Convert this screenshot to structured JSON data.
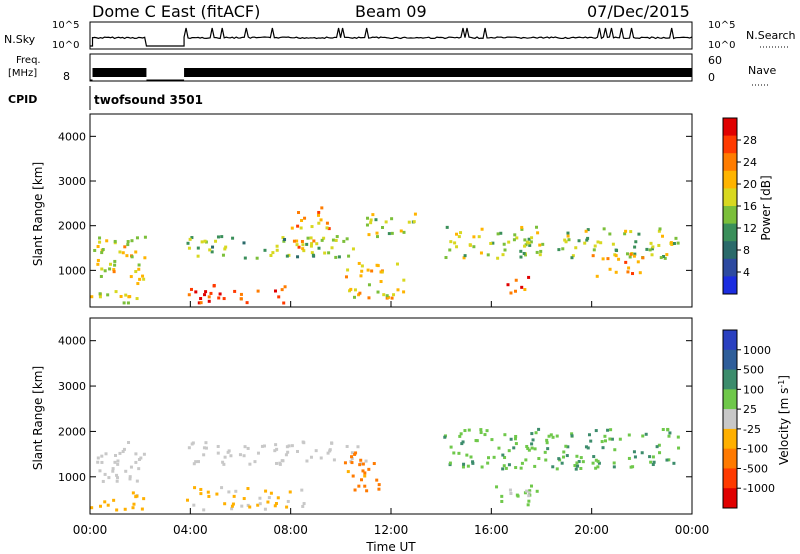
{
  "header": {
    "title": "Dome C East (fitACF)",
    "beam": "Beam 09",
    "date": "07/Dec/2015"
  },
  "top_panels": {
    "nsky_label": "N.Sky",
    "nsky_ticks": [
      "10^5",
      "10^0"
    ],
    "nsearch_label": "N.Search",
    "nsearch_ticks": [
      "10^5",
      "10^0"
    ],
    "freq_label": "Freq.",
    "freq_unit": "[MHz]",
    "freq_ticks": [
      "8"
    ],
    "nave_label": "Nave",
    "nave_ticks": [
      "60",
      "0"
    ],
    "cpid_label": "CPID",
    "cpid_value": "twofsound 3501"
  },
  "axes": {
    "y_label": "Slant Range [km]",
    "y_ticks": [
      "4000",
      "3000",
      "2000",
      "1000"
    ],
    "x_label": "Time UT",
    "x_ticks": [
      "00:00",
      "04:00",
      "08:00",
      "12:00",
      "16:00",
      "20:00",
      "00:00"
    ]
  },
  "colorbars": {
    "power": {
      "label": "Power [dB]",
      "ticks": [
        "28",
        "24",
        "20",
        "16",
        "12",
        "8",
        "4"
      ],
      "colors": [
        "#e00000",
        "#ff3a00",
        "#ff7c00",
        "#ffb400",
        "#d8d820",
        "#7bbf3a",
        "#3a8f5a",
        "#2a6a6a",
        "#2d4aa0",
        "#1b2de0"
      ]
    },
    "velocity": {
      "label": "Velocity [m s^-1]",
      "ticks": [
        "1000",
        "500",
        "100",
        "25",
        "-25",
        "-100",
        "-500",
        "-1000"
      ],
      "colors": [
        "#2a40c0",
        "#2f5e9a",
        "#3c8c6c",
        "#6fc84a",
        "#c8c8c8",
        "#ffb000",
        "#ff7a00",
        "#ff3a00",
        "#e00000"
      ]
    }
  },
  "chart_data": [
    {
      "type": "heatmap",
      "title": "Power",
      "xlabel": "Time UT",
      "ylabel": "Slant Range [km]",
      "xlim": [
        "00:00",
        "24:00"
      ],
      "ylim": [
        180,
        4500
      ],
      "colorbar_label": "Power [dB]",
      "colorbar_range": [
        0,
        32
      ],
      "data_gap": [
        "02:15",
        "03:45"
      ],
      "echo_regions": [
        {
          "t0": 0.0,
          "t1": 2.2,
          "r0": 300,
          "r1": 1800,
          "level": 18
        },
        {
          "t0": 3.8,
          "t1": 7.8,
          "r0": 300,
          "r1": 700,
          "level": 27
        },
        {
          "t0": 3.8,
          "t1": 10.5,
          "r0": 1300,
          "r1": 1800,
          "level": 14
        },
        {
          "t0": 8.0,
          "t1": 9.5,
          "r0": 1500,
          "r1": 2500,
          "level": 22
        },
        {
          "t0": 10.0,
          "t1": 12.5,
          "r0": 400,
          "r1": 1200,
          "level": 20
        },
        {
          "t0": 11.0,
          "t1": 13.0,
          "r0": 1700,
          "r1": 2300,
          "level": 17
        },
        {
          "t0": 14.0,
          "t1": 23.5,
          "r0": 1300,
          "r1": 2000,
          "level": 16
        },
        {
          "t0": 16.5,
          "t1": 17.5,
          "r0": 500,
          "r1": 900,
          "level": 26
        },
        {
          "t0": 20.0,
          "t1": 22.0,
          "r0": 900,
          "r1": 1400,
          "level": 24
        }
      ]
    },
    {
      "type": "heatmap",
      "title": "Velocity",
      "xlabel": "Time UT",
      "ylabel": "Slant Range [km]",
      "xlim": [
        "00:00",
        "24:00"
      ],
      "ylim": [
        180,
        4500
      ],
      "colorbar_label": "Velocity [m s^-1]",
      "colorbar_range": [
        -1000,
        1000
      ],
      "data_gap": [
        "02:15",
        "03:45"
      ],
      "echo_regions": [
        {
          "t0": 0.0,
          "t1": 2.2,
          "r0": 900,
          "r1": 1800,
          "level": 0
        },
        {
          "t0": 0.0,
          "t1": 2.2,
          "r0": 300,
          "r1": 700,
          "level": -150
        },
        {
          "t0": 3.8,
          "t1": 8.5,
          "r0": 300,
          "r1": 800,
          "level": -120
        },
        {
          "t0": 3.8,
          "t1": 11.0,
          "r0": 1300,
          "r1": 1800,
          "level": 0
        },
        {
          "t0": 10.0,
          "t1": 11.5,
          "r0": 700,
          "r1": 1600,
          "level": -400
        },
        {
          "t0": 14.0,
          "t1": 23.5,
          "r0": 1200,
          "r1": 2100,
          "level": 300
        },
        {
          "t0": 16.0,
          "t1": 18.0,
          "r0": 400,
          "r1": 900,
          "level": 150
        }
      ]
    }
  ]
}
